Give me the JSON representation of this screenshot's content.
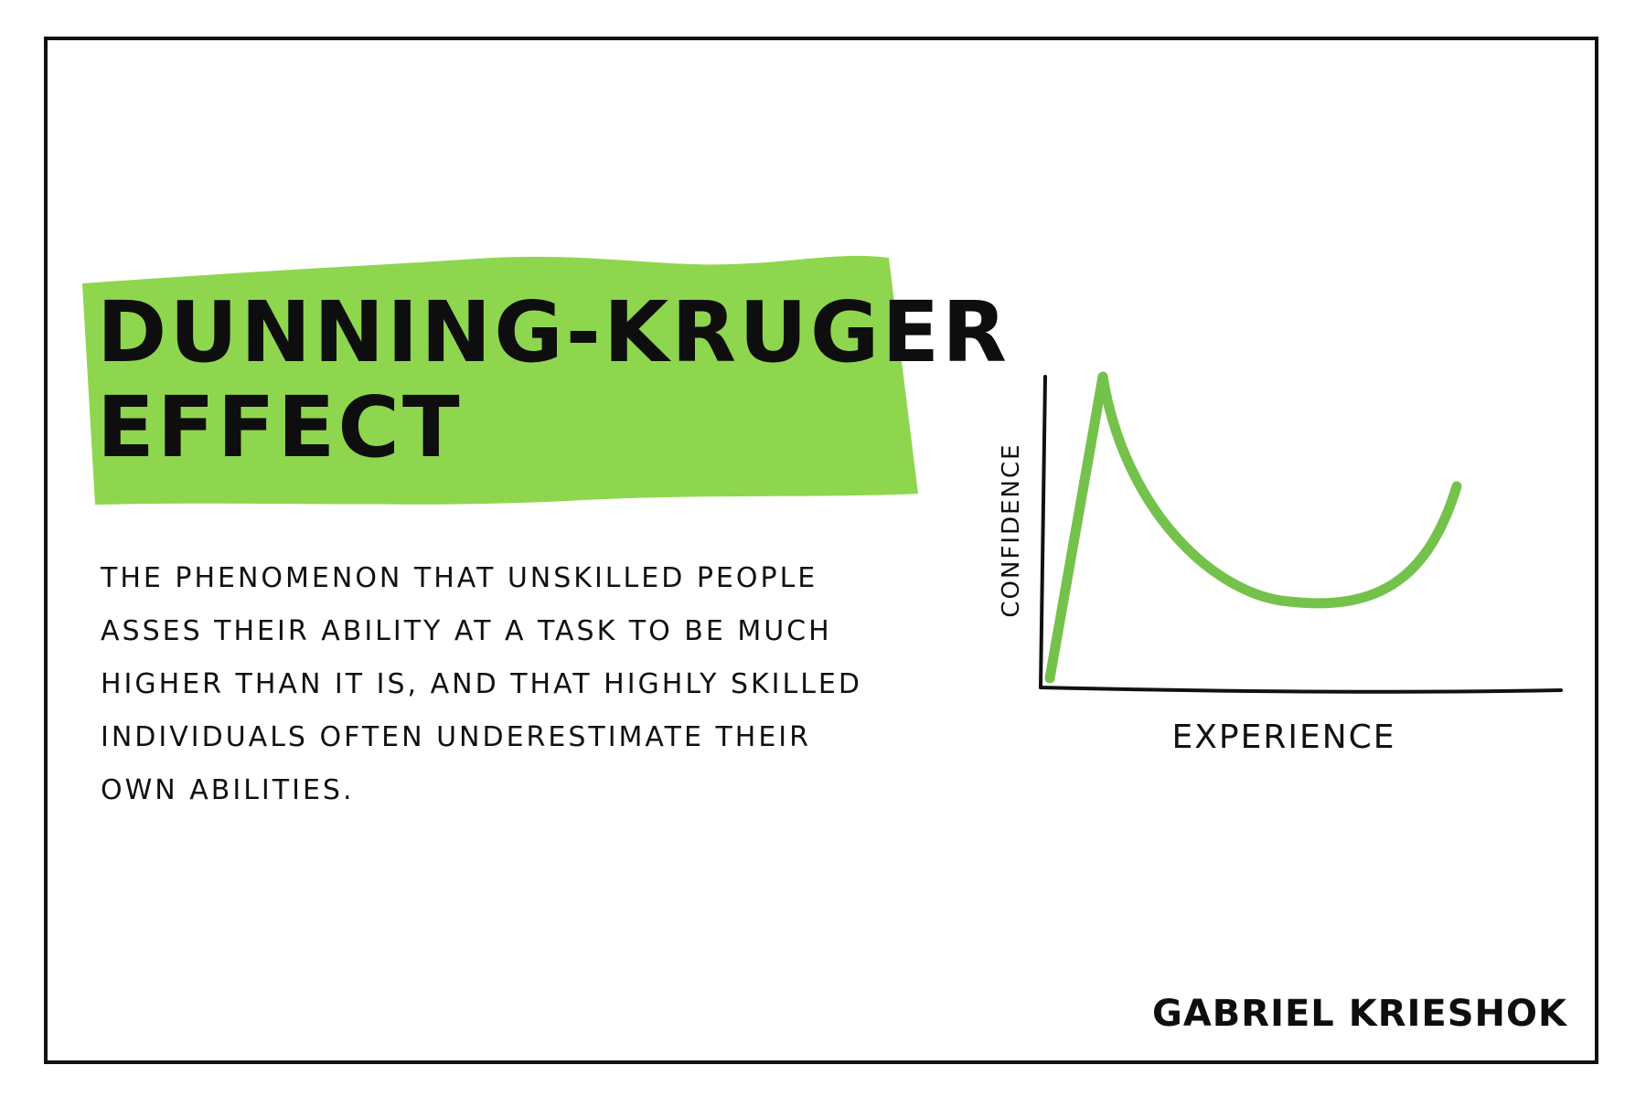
{
  "colors": {
    "highlight": "#8fd64f",
    "curve": "#74c24b",
    "ink": "#111111",
    "background": "#ffffff"
  },
  "title": {
    "line1": "DUNNING-KRUGER",
    "line2": "EFFECT"
  },
  "description": {
    "lines": [
      "THE PHENOMENON THAT UNSKILLED PEOPLE",
      "ASSES THEIR ABILITY AT A TASK TO BE MUCH",
      "HIGHER THAN IT IS, AND THAT HIGHLY SKILLED",
      "INDIVIDUALS OFTEN UNDERESTIMATE THEIR",
      "OWN ABILITIES."
    ]
  },
  "diagram": {
    "x_label": "EXPERIENCE",
    "y_label": "CONFIDENCE"
  },
  "signature": "GABRIEL KRIESHOK"
}
